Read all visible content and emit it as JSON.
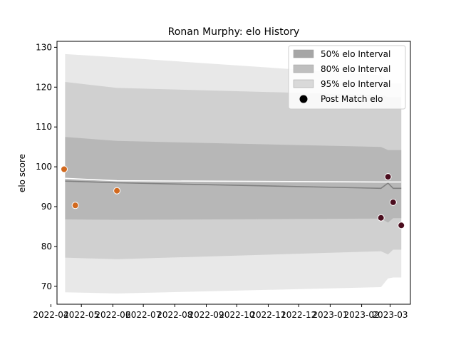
{
  "chart_data": {
    "type": "area",
    "title": "Ronan Murphy: elo History",
    "xlabel": "",
    "ylabel": "elo score",
    "xlim": [
      "2022-04-07",
      "2023-03-21"
    ],
    "ylim": [
      65.5,
      131.5
    ],
    "yticks": [
      70,
      80,
      90,
      100,
      110,
      120,
      130
    ],
    "xticks": [
      "2022-04",
      "2022-05",
      "2022-06",
      "2022-07",
      "2022-08",
      "2022-09",
      "2022-10",
      "2022-11",
      "2022-12",
      "2023-01",
      "2023-02",
      "2023-03"
    ],
    "grid": false,
    "legend_position": "top-right",
    "colors": {
      "band_95": "#d9d9d9",
      "band_80": "#bfbfbf",
      "band_50": "#a6a6a6",
      "mean_line": "#ffffff",
      "median_line": "#808080",
      "early_points": "#d2691e",
      "recent_points": "#4b0d1e"
    },
    "band_x": [
      "2022-04-15",
      "2022-06-05",
      "2023-02-20",
      "2023-02-27",
      "2023-03-04",
      "2023-03-12"
    ],
    "series": [
      {
        "name": "95% elo Interval",
        "lower": [
          68.5,
          68.2,
          69.8,
          72.0,
          72.2,
          72.2
        ],
        "upper": [
          128.3,
          127.5,
          123.0,
          121.0,
          121.0,
          121.0
        ]
      },
      {
        "name": "80% elo Interval",
        "lower": [
          77.2,
          76.8,
          78.8,
          78.0,
          79.2,
          79.2
        ],
        "upper": [
          121.3,
          119.8,
          118.0,
          117.5,
          117.5,
          117.5
        ]
      },
      {
        "name": "50% elo Interval",
        "lower": [
          86.8,
          86.7,
          87.0,
          86.0,
          87.1,
          87.1
        ],
        "upper": [
          107.5,
          106.5,
          105.0,
          104.2,
          104.2,
          104.2
        ]
      }
    ],
    "mean_line": [
      97.1,
      96.5,
      96.2,
      96.2,
      96.2,
      96.2
    ],
    "median_line": [
      96.4,
      96.0,
      94.6,
      95.9,
      94.6,
      94.6
    ],
    "post_match": {
      "name": "Post Match elo",
      "points": [
        {
          "x": "2022-04-14",
          "y": 99.4,
          "group": "early"
        },
        {
          "x": "2022-04-25",
          "y": 90.3,
          "group": "early"
        },
        {
          "x": "2022-06-05",
          "y": 94.0,
          "group": "early"
        },
        {
          "x": "2023-02-20",
          "y": 87.2,
          "group": "recent"
        },
        {
          "x": "2023-02-27",
          "y": 97.5,
          "group": "recent"
        },
        {
          "x": "2023-03-04",
          "y": 91.1,
          "group": "recent"
        },
        {
          "x": "2023-03-12",
          "y": 85.3,
          "group": "recent"
        }
      ]
    }
  }
}
